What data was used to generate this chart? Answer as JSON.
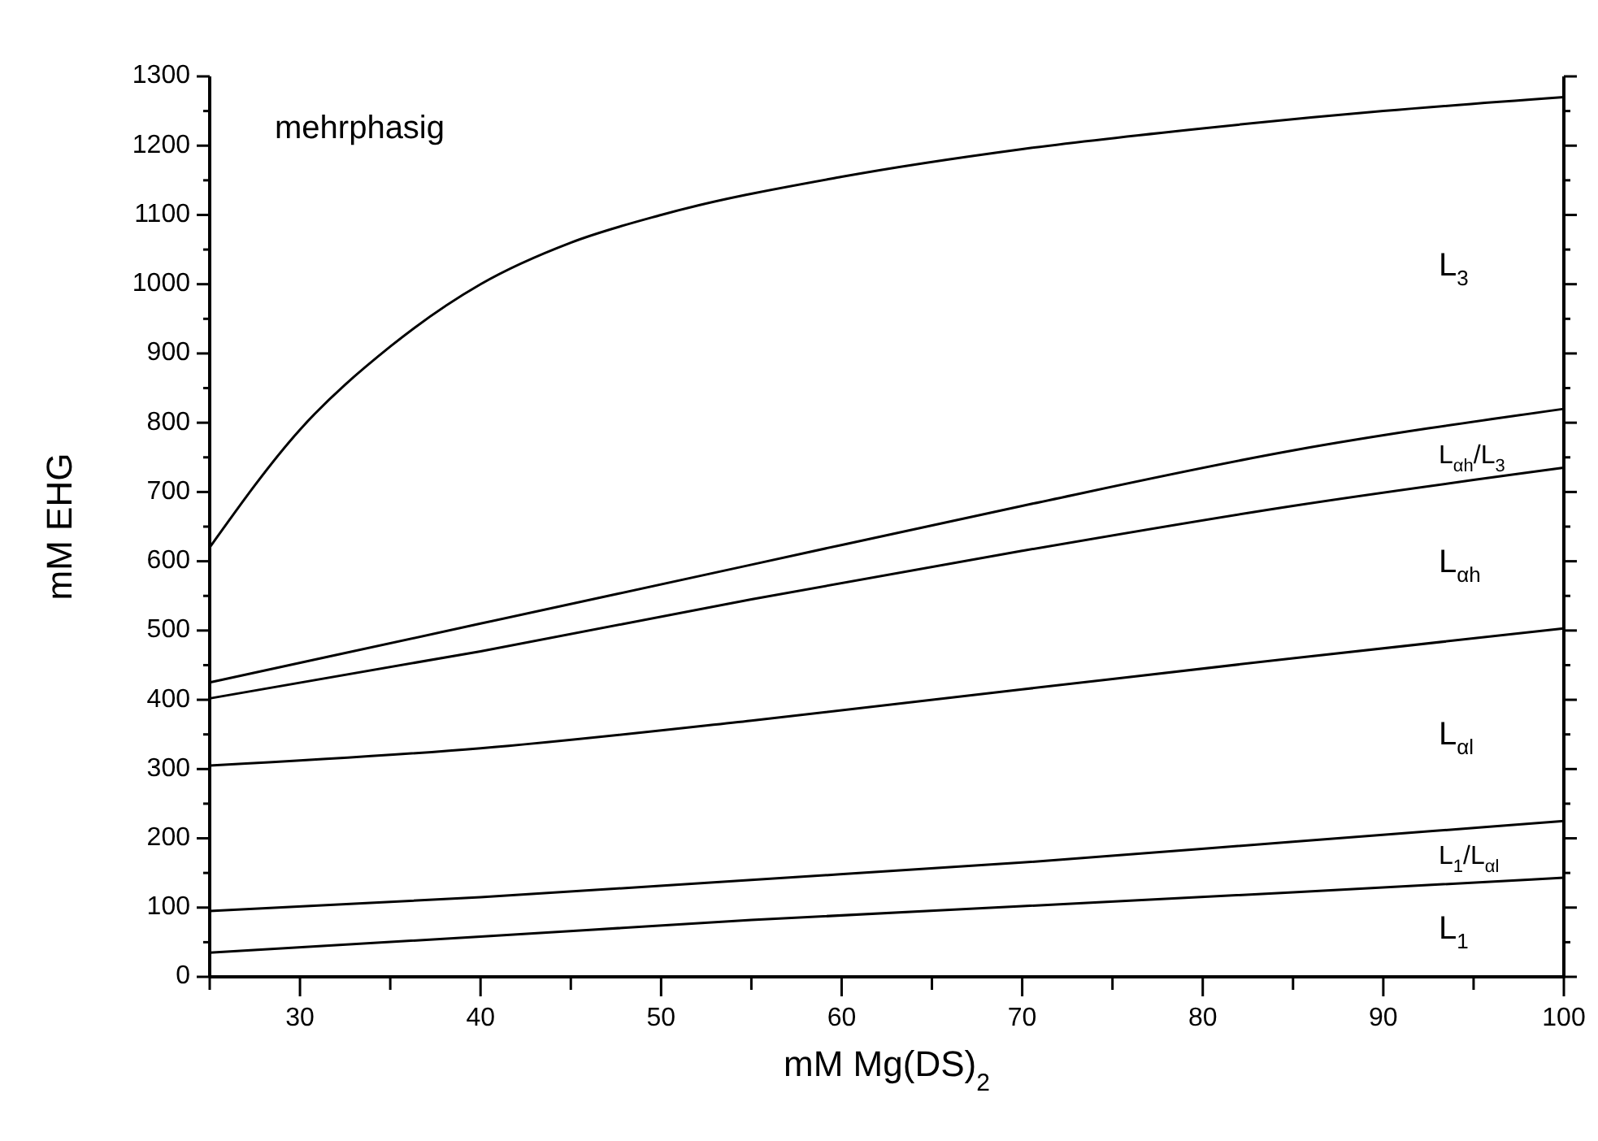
{
  "chart_data": {
    "type": "line",
    "xlabel": "mM Mg(DS)$_{2}$",
    "ylabel": "mM EHG",
    "xlim": [
      25,
      100
    ],
    "ylim": [
      0,
      1300
    ],
    "xticks": [
      {
        "value": 25,
        "label": null
      },
      30,
      {
        "value": 35,
        "label": null
      },
      40,
      {
        "value": 45,
        "label": null
      },
      50,
      {
        "value": 55,
        "label": null
      },
      60,
      {
        "value": 65,
        "label": null
      },
      70,
      {
        "value": 75,
        "label": null
      },
      80,
      {
        "value": 85,
        "label": null
      },
      90,
      {
        "value": 95,
        "label": null
      },
      100
    ],
    "yticks": [
      0,
      {
        "value": 50,
        "label": null
      },
      100,
      {
        "value": 150,
        "label": null
      },
      200,
      {
        "value": 250,
        "label": null
      },
      300,
      {
        "value": 350,
        "label": null
      },
      400,
      {
        "value": 450,
        "label": null
      },
      500,
      {
        "value": 550,
        "label": null
      },
      600,
      {
        "value": 650,
        "label": null
      },
      700,
      {
        "value": 750,
        "label": null
      },
      800,
      {
        "value": 850,
        "label": null
      },
      900,
      {
        "value": 950,
        "label": null
      },
      1000,
      {
        "value": 1050,
        "label": null
      },
      1100,
      {
        "value": 1150,
        "label": null
      },
      1200,
      {
        "value": 1250,
        "label": null
      },
      1300
    ],
    "x": [
      25,
      30,
      35,
      40,
      45,
      50,
      60,
      70,
      80,
      90,
      100
    ],
    "series": [
      {
        "color": "#000000",
        "values": [
          620,
          790,
          910,
          1000,
          1060,
          1100,
          1155,
          1195,
          1225,
          1250,
          1270
        ]
      },
      {
        "color": "#000000",
        "x": [
          25,
          40,
          55,
          70,
          85,
          100
        ],
        "values": [
          425,
          510,
          595,
          680,
          760,
          820
        ]
      },
      {
        "color": "#000000",
        "x": [
          25,
          40,
          55,
          70,
          85,
          100
        ],
        "values": [
          402,
          470,
          545,
          615,
          680,
          735
        ]
      },
      {
        "color": "#000000",
        "x": [
          25,
          40,
          55,
          70,
          85,
          100
        ],
        "values": [
          305,
          330,
          370,
          415,
          460,
          503
        ]
      },
      {
        "color": "#000000",
        "x": [
          25,
          40,
          55,
          70,
          85,
          100
        ],
        "values": [
          95,
          115,
          140,
          165,
          195,
          225
        ]
      },
      {
        "color": "#000000",
        "x": [
          25,
          40,
          55,
          70,
          85,
          100
        ],
        "values": [
          35,
          58,
          82,
          102,
          122,
          143
        ]
      }
    ],
    "annotations": [
      "mehrphasig",
      "L$_{3}$",
      "L$_{αh}$/L$_{3}$",
      "L$_{αh}$",
      "L$_{αl}$",
      "L$_{1}$/L$_{αl}$",
      "L$_{1}$"
    ],
    "grid": false,
    "marker": "none",
    "line_style": "solid"
  }
}
